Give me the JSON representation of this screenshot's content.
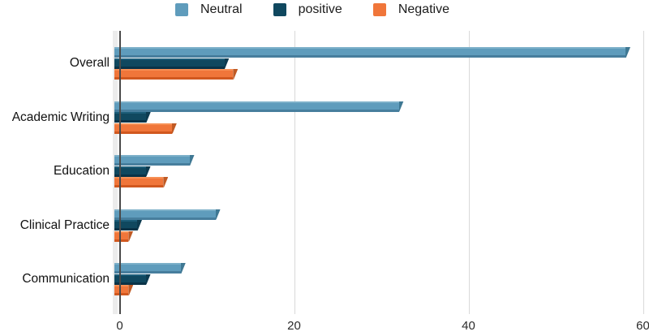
{
  "chart_data": {
    "type": "bar",
    "orientation": "horizontal",
    "title": "",
    "xlabel": "",
    "ylabel": "",
    "categories": [
      "Overall",
      "Academic Writing",
      "Education",
      "Clinical Practice",
      "Communication"
    ],
    "series": [
      {
        "name": "Neutral",
        "color": "#5f9cbc",
        "highlight": "#7db0c9",
        "shadow": "#477e9d",
        "cap": "#3f7893",
        "values": [
          58,
          32,
          8,
          11,
          7
        ]
      },
      {
        "name": "positive",
        "color": "#10485f",
        "highlight": "#1c5d79",
        "shadow": "#0a3347",
        "cap": "#0d3b50",
        "values": [
          12,
          3,
          3,
          2,
          3
        ]
      },
      {
        "name": "Negative",
        "color": "#f0763a",
        "highlight": "#f79055",
        "shadow": "#d1581f",
        "cap": "#c05a24",
        "values": [
          13,
          6,
          5,
          1,
          1
        ]
      }
    ],
    "xlim": [
      0,
      60
    ],
    "x_ticks": [
      0,
      20,
      40,
      60
    ],
    "grid": "vertical-gridlines-on",
    "legend_position": "top-center",
    "background": "#ffffff",
    "axis_color": "#4a4a4a",
    "gridline_color": "#d9d9d9"
  }
}
